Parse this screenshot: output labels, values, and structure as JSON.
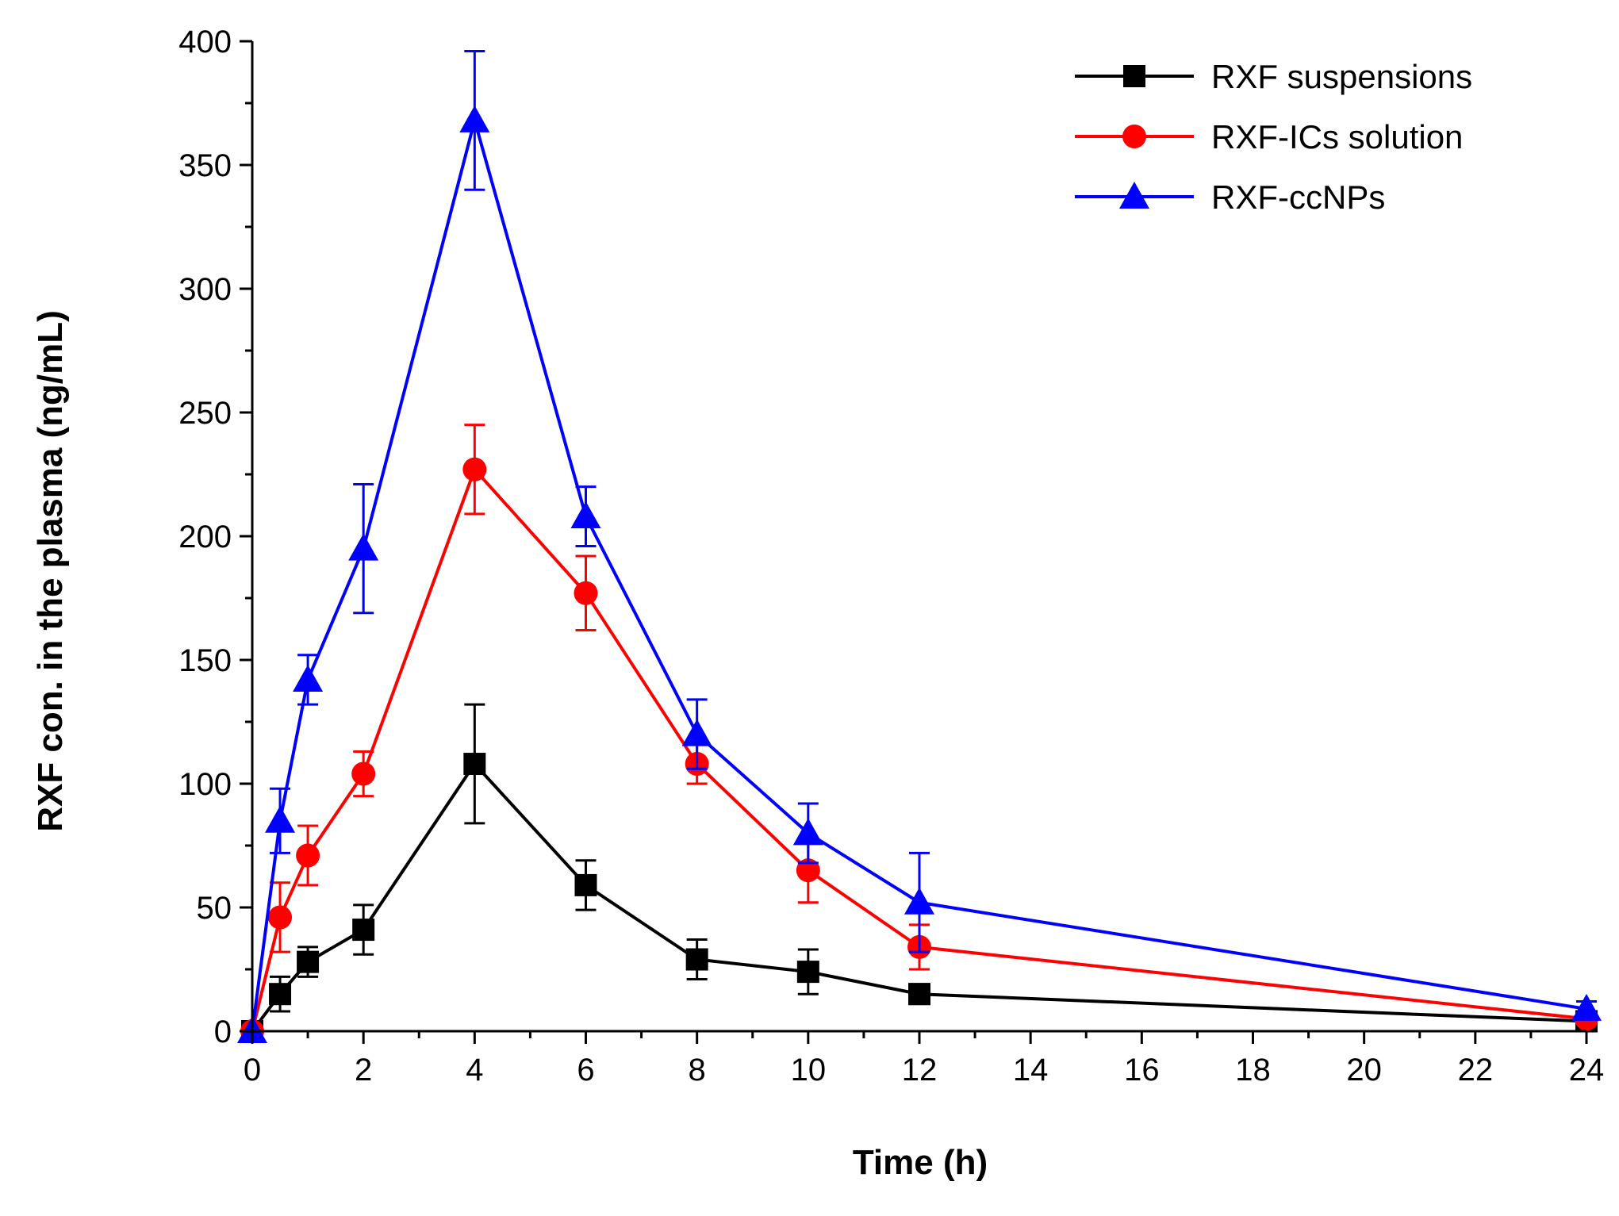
{
  "chart_data": {
    "type": "line",
    "title": "",
    "xlabel": "Time (h)",
    "ylabel": "RXF con. in the plasma (ng/mL)",
    "xlim": [
      0,
      24
    ],
    "ylim": [
      0,
      400
    ],
    "x_ticks": [
      "0",
      "2",
      "4",
      "6",
      "8",
      "10",
      "12",
      "14",
      "16",
      "18",
      "20",
      "22",
      "24"
    ],
    "y_ticks": [
      "0",
      "50",
      "100",
      "150",
      "200",
      "250",
      "300",
      "350",
      "400"
    ],
    "grid": false,
    "legend_position": "top-right",
    "x": [
      0,
      0.5,
      1,
      2,
      4,
      6,
      8,
      10,
      12,
      24
    ],
    "series": [
      {
        "name": "RXF suspensions",
        "color": "#000000",
        "marker": "square",
        "values": [
          0,
          15,
          28,
          41,
          108,
          59,
          29,
          24,
          15,
          4
        ],
        "errors": [
          0,
          7,
          6,
          10,
          24,
          10,
          8,
          9,
          4,
          0
        ]
      },
      {
        "name": "RXF-ICs solution",
        "color": "#ff0000",
        "marker": "circle",
        "values": [
          0,
          46,
          71,
          104,
          227,
          177,
          108,
          65,
          34,
          5
        ],
        "errors": [
          0,
          14,
          12,
          9,
          18,
          15,
          8,
          13,
          9,
          0
        ]
      },
      {
        "name": "RXF-ccNPs",
        "color": "#0000ff",
        "marker": "triangle",
        "values": [
          0,
          85,
          142,
          195,
          368,
          208,
          120,
          80,
          52,
          9
        ],
        "errors": [
          0,
          13,
          10,
          26,
          28,
          12,
          14,
          12,
          20,
          3
        ]
      }
    ]
  }
}
